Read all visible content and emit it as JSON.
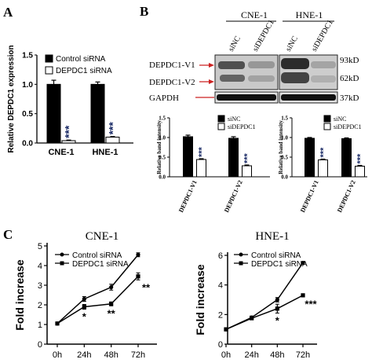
{
  "panels": {
    "a": {
      "letter": "A"
    },
    "b": {
      "letter": "B"
    },
    "c": {
      "letter": "C"
    }
  },
  "colors": {
    "control": "#000000",
    "depdc1": "#ffffff",
    "stars": "#1a2a66",
    "blot_arrow": "#cc2222"
  },
  "blot": {
    "cell_lines": [
      "CNE-1",
      "HNE-1"
    ],
    "lane_labels": [
      "siNC",
      "siDEPDC1",
      "siNC",
      "siDEPDC1"
    ],
    "row_labels": [
      "DEPDC1-V1",
      "DEPDC1-V2",
      "GAPDH"
    ],
    "size_markers": [
      "93kD",
      "62kD",
      "37kD"
    ]
  },
  "chart_data": [
    {
      "type": "bar",
      "panel": "A",
      "title": "",
      "xlabel": "",
      "ylabel": "Relative DEPDC1 expression",
      "categories": [
        "CNE-1",
        "HNE-1"
      ],
      "ylim": [
        0,
        1.5
      ],
      "yticks": [
        "0.0",
        "0.5",
        "1.0",
        "1.5"
      ],
      "series": [
        {
          "name": "Control siRNA",
          "values": [
            1.0,
            1.0
          ],
          "errors": [
            0.07,
            0.04
          ]
        },
        {
          "name": "DEPDC1 siRNA",
          "values": [
            0.04,
            0.1
          ],
          "errors": [
            0.01,
            0.01
          ]
        }
      ],
      "annotations": [
        "***",
        "***"
      ],
      "legend": "top-left"
    },
    {
      "type": "bar",
      "panel": "B-CNE-1",
      "title": "",
      "xlabel": "",
      "ylabel": "Relative band intensity",
      "categories": [
        "DEPDC1-V1",
        "DEPDC1-V2"
      ],
      "ylim": [
        0,
        1.5
      ],
      "yticks": [
        "0.0",
        "0.5",
        "1.0",
        "1.5"
      ],
      "series": [
        {
          "name": "siNC",
          "values": [
            1.02,
            0.98
          ],
          "errors": [
            0.04,
            0.04
          ]
        },
        {
          "name": "siDEPDC1",
          "values": [
            0.44,
            0.28
          ],
          "errors": [
            0.02,
            0.02
          ]
        }
      ],
      "annotations": [
        "***",
        "***"
      ],
      "legend": "top-right"
    },
    {
      "type": "bar",
      "panel": "B-HNE-1",
      "title": "",
      "xlabel": "",
      "ylabel": "Relative band intensity",
      "categories": [
        "DEPDC1-V1",
        "DEPDC1-V2"
      ],
      "ylim": [
        0,
        1.5
      ],
      "yticks": [
        "0.0",
        "0.5",
        "1.0",
        "1.5"
      ],
      "series": [
        {
          "name": "siNC",
          "values": [
            0.98,
            0.97
          ],
          "errors": [
            0.02,
            0.02
          ]
        },
        {
          "name": "siDEPDC1",
          "values": [
            0.43,
            0.27
          ],
          "errors": [
            0.02,
            0.02
          ]
        }
      ],
      "annotations": [
        "***",
        "***"
      ],
      "legend": "top-right"
    },
    {
      "type": "line",
      "panel": "C-CNE-1",
      "title": "CNE-1",
      "xlabel": "",
      "ylabel": "Fold increase",
      "categories": [
        "0h",
        "24h",
        "48h",
        "72h"
      ],
      "ylim": [
        0,
        5
      ],
      "yticks": [
        "0",
        "1",
        "2",
        "3",
        "4",
        "5"
      ],
      "series": [
        {
          "name": "Control siRNA",
          "values": [
            1.05,
            2.3,
            2.9,
            4.55
          ],
          "errors": [
            0.05,
            0.12,
            0.15,
            0.1
          ]
        },
        {
          "name": "DEPDC1 siRNA",
          "values": [
            1.05,
            1.9,
            2.05,
            3.45
          ],
          "errors": [
            0.05,
            0.12,
            0.1,
            0.18
          ]
        }
      ],
      "annotations": [
        "",
        "*",
        "**",
        "**"
      ],
      "legend": "top-left"
    },
    {
      "type": "line",
      "panel": "C-HNE-1",
      "title": "HNE-1",
      "xlabel": "",
      "ylabel": "Fold increase",
      "categories": [
        "0h",
        "24h",
        "48h",
        "72h"
      ],
      "ylim": [
        0,
        6
      ],
      "yticks": [
        "0",
        "2",
        "4",
        "6"
      ],
      "series": [
        {
          "name": "Control siRNA",
          "values": [
            1.0,
            1.8,
            3.0,
            5.5
          ],
          "errors": [
            0.1,
            0.1,
            0.15,
            0.05
          ]
        },
        {
          "name": "DEPDC1 siRNA",
          "values": [
            1.0,
            1.75,
            2.4,
            3.3
          ],
          "errors": [
            0.1,
            0.1,
            0.3,
            0.1
          ]
        }
      ],
      "annotations": [
        "",
        "",
        "*",
        "***"
      ],
      "legend": "top-left"
    }
  ]
}
